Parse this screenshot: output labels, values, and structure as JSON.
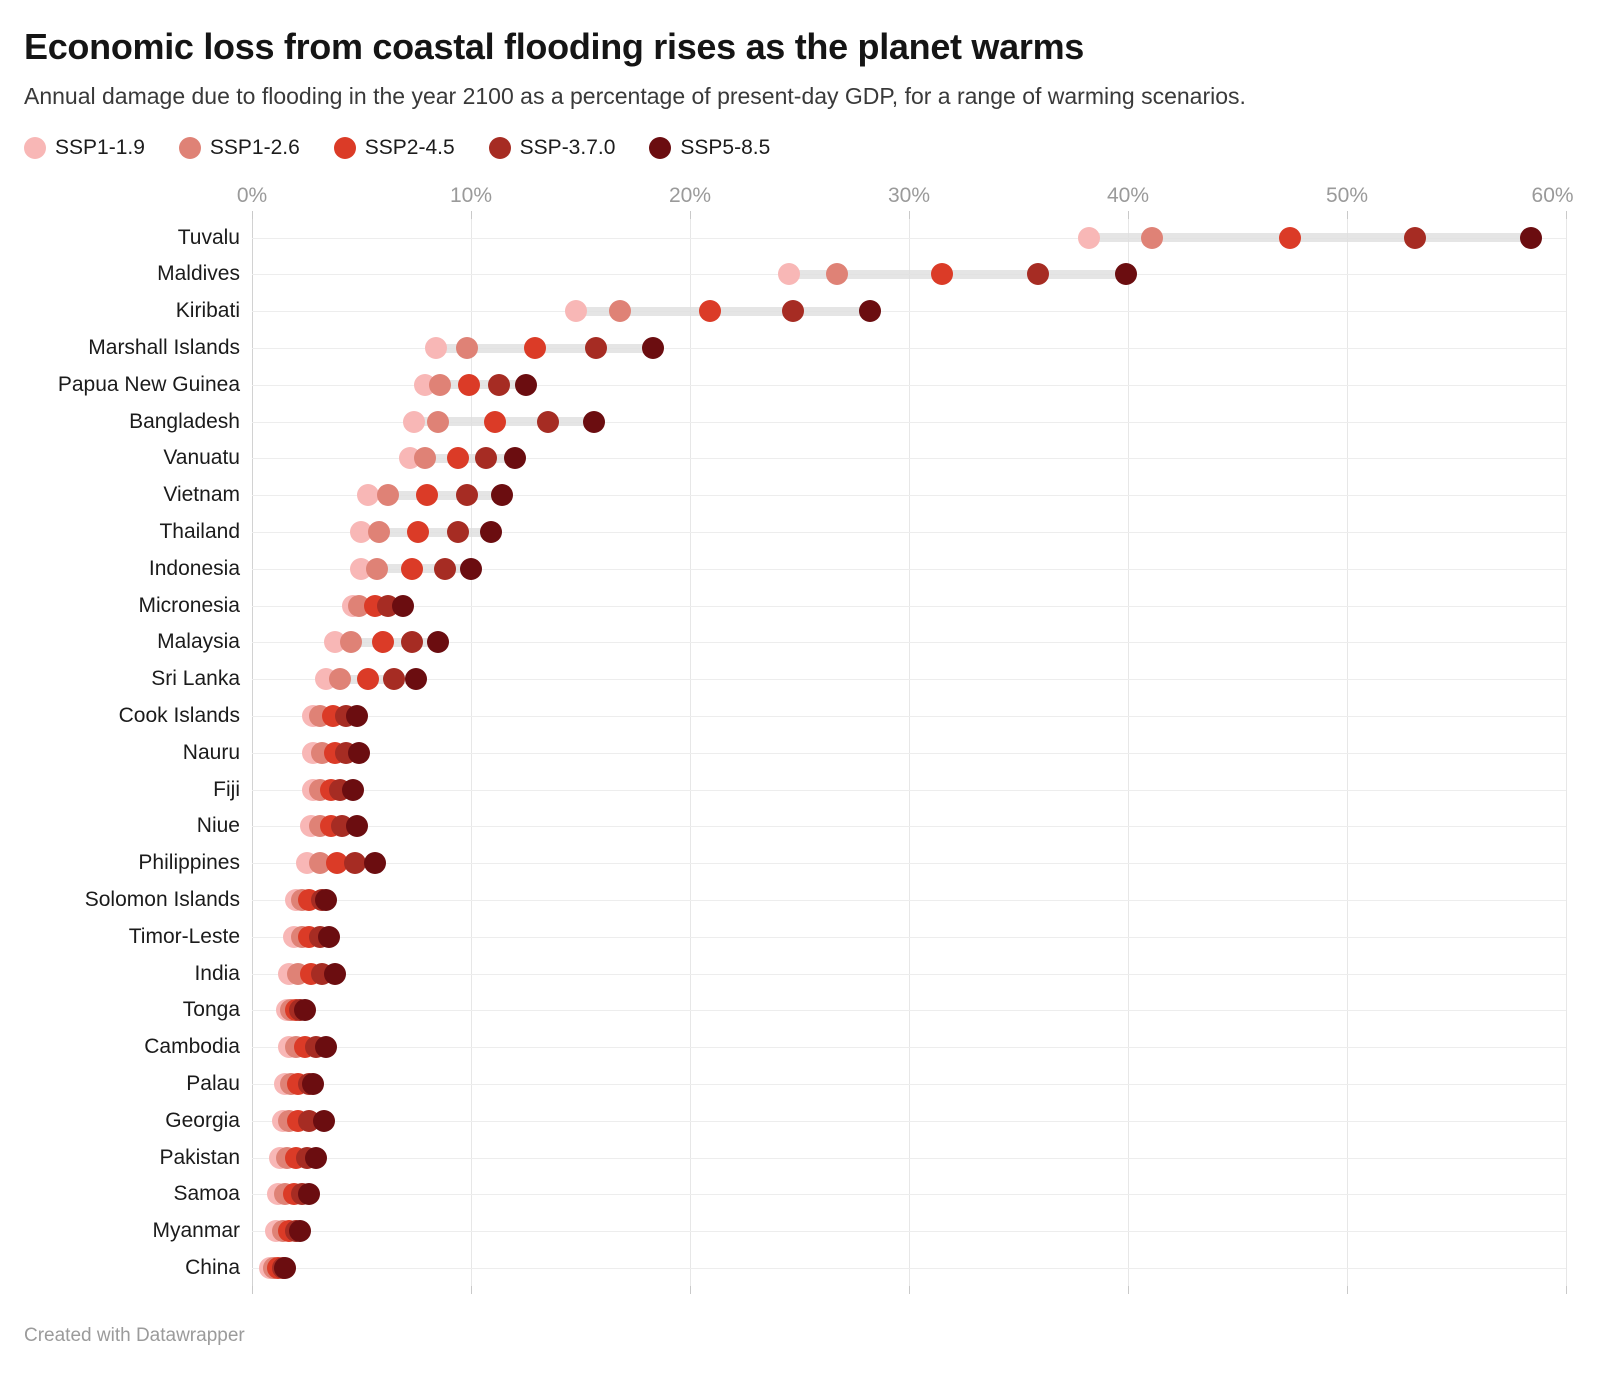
{
  "title": "Economic loss from coastal flooding rises as the planet warms",
  "subtitle": "Annual damage due to flooding in the year 2100 as a percentage of present-day GDP, for a range of warming scenarios.",
  "footer": "Created with Datawrapper",
  "chart_data": {
    "type": "scatter",
    "variant": "dot-range-plot",
    "unit": "%",
    "xlim": [
      0,
      60
    ],
    "grid": true,
    "legend_position": "top",
    "x_ticks": [
      {
        "value": 0,
        "label": "0%"
      },
      {
        "value": 10,
        "label": "10%"
      },
      {
        "value": 20,
        "label": "20%"
      },
      {
        "value": 30,
        "label": "30%"
      },
      {
        "value": 40,
        "label": "40%"
      },
      {
        "value": 50,
        "label": "50%"
      },
      {
        "value": 60,
        "label": "60%"
      }
    ],
    "series": [
      {
        "name": "SSP1-1.9",
        "color": "#F8B7B6"
      },
      {
        "name": "SSP1-2.6",
        "color": "#DF8276"
      },
      {
        "name": "SSP2-4.5",
        "color": "#DB3B27"
      },
      {
        "name": "SSP-3.7.0",
        "color": "#A62C23"
      },
      {
        "name": "SSP5-8.5",
        "color": "#6B0D10"
      }
    ],
    "rows": [
      {
        "country": "Tuvalu",
        "values": [
          38.2,
          41.1,
          47.4,
          53.1,
          58.4
        ]
      },
      {
        "country": "Maldives",
        "values": [
          24.5,
          26.7,
          31.5,
          35.9,
          39.9
        ]
      },
      {
        "country": "Kiribati",
        "values": [
          14.8,
          16.8,
          20.9,
          24.7,
          28.2
        ]
      },
      {
        "country": "Marshall Islands",
        "values": [
          8.4,
          9.8,
          12.9,
          15.7,
          18.3
        ]
      },
      {
        "country": "Papua New Guinea",
        "values": [
          7.9,
          8.6,
          9.9,
          11.3,
          12.5
        ]
      },
      {
        "country": "Bangladesh",
        "values": [
          7.4,
          8.5,
          11.1,
          13.5,
          15.6
        ]
      },
      {
        "country": "Vanuatu",
        "values": [
          7.2,
          7.9,
          9.4,
          10.7,
          12.0
        ]
      },
      {
        "country": "Vietnam",
        "values": [
          5.3,
          6.2,
          8.0,
          9.8,
          11.4
        ]
      },
      {
        "country": "Thailand",
        "values": [
          5.0,
          5.8,
          7.6,
          9.4,
          10.9
        ]
      },
      {
        "country": "Indonesia",
        "values": [
          5.0,
          5.7,
          7.3,
          8.8,
          10.0
        ]
      },
      {
        "country": "Micronesia",
        "values": [
          4.6,
          4.9,
          5.6,
          6.2,
          6.9
        ]
      },
      {
        "country": "Malaysia",
        "values": [
          3.8,
          4.5,
          6.0,
          7.3,
          8.5
        ]
      },
      {
        "country": "Sri Lanka",
        "values": [
          3.4,
          4.0,
          5.3,
          6.5,
          7.5
        ]
      },
      {
        "country": "Cook Islands",
        "values": [
          2.8,
          3.1,
          3.7,
          4.3,
          4.8
        ]
      },
      {
        "country": "Nauru",
        "values": [
          2.8,
          3.2,
          3.8,
          4.3,
          4.9
        ]
      },
      {
        "country": "Fiji",
        "values": [
          2.8,
          3.1,
          3.6,
          4.0,
          4.6
        ]
      },
      {
        "country": "Niue",
        "values": [
          2.7,
          3.1,
          3.6,
          4.1,
          4.8
        ]
      },
      {
        "country": "Philippines",
        "values": [
          2.5,
          3.1,
          3.9,
          4.7,
          5.6
        ]
      },
      {
        "country": "Solomon Islands",
        "values": [
          2.0,
          2.3,
          2.6,
          3.2,
          3.4
        ]
      },
      {
        "country": "Timor-Leste",
        "values": [
          1.9,
          2.3,
          2.6,
          3.1,
          3.5
        ]
      },
      {
        "country": "India",
        "values": [
          1.7,
          2.1,
          2.7,
          3.2,
          3.8
        ]
      },
      {
        "country": "Tonga",
        "values": [
          1.6,
          1.8,
          2.0,
          2.2,
          2.4
        ]
      },
      {
        "country": "Cambodia",
        "values": [
          1.7,
          2.0,
          2.4,
          2.9,
          3.4
        ]
      },
      {
        "country": "Palau",
        "values": [
          1.5,
          1.8,
          2.1,
          2.6,
          2.8
        ]
      },
      {
        "country": "Georgia",
        "values": [
          1.4,
          1.7,
          2.1,
          2.6,
          3.3
        ]
      },
      {
        "country": "Pakistan",
        "values": [
          1.3,
          1.6,
          2.0,
          2.5,
          2.9
        ]
      },
      {
        "country": "Samoa",
        "values": [
          1.2,
          1.5,
          1.9,
          2.3,
          2.6
        ]
      },
      {
        "country": "Myanmar",
        "values": [
          1.1,
          1.4,
          1.7,
          2.0,
          2.2
        ]
      },
      {
        "country": "China",
        "values": [
          0.8,
          1.0,
          1.2,
          1.4,
          1.5
        ]
      }
    ]
  }
}
